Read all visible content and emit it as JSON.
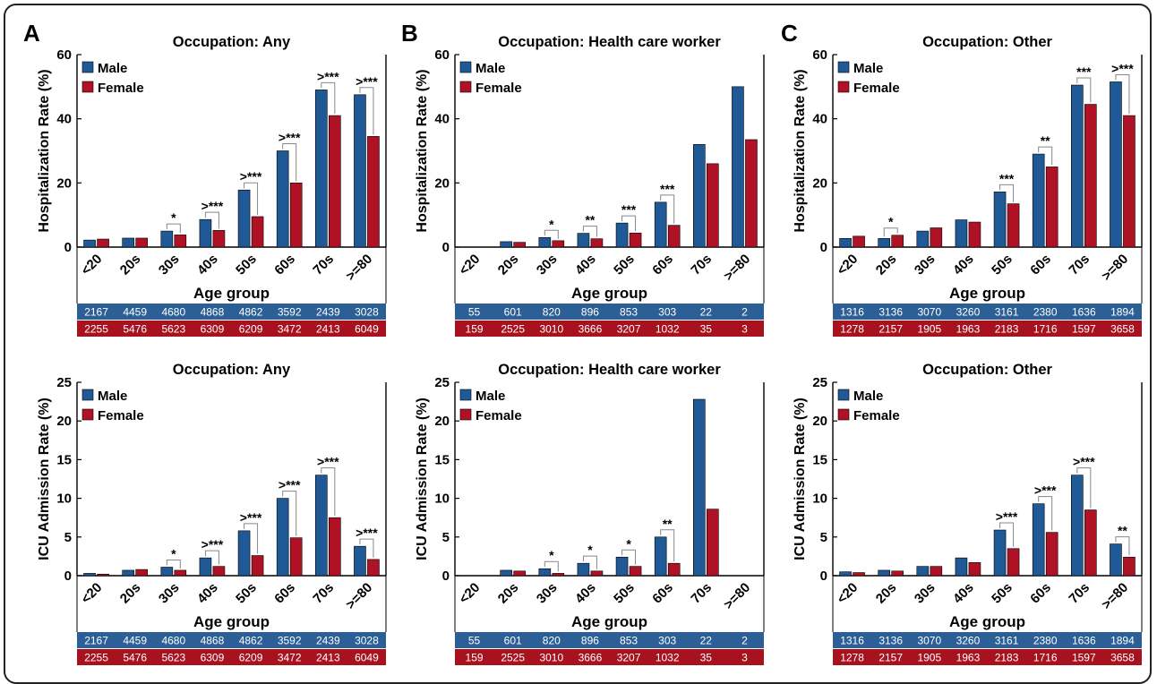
{
  "colors": {
    "male": "#1f5996",
    "female": "#b01225",
    "male_row": "#2b5f95",
    "female_row": "#a8121f"
  },
  "panel_letters": [
    "A",
    "B",
    "C"
  ],
  "legend": {
    "male": "Male",
    "female": "Female"
  },
  "x_axis_label": "Age group",
  "chart_data": [
    {
      "type": "bar",
      "panel": "A",
      "title": "Occupation: Any",
      "ylabel": "Hospitalization Rate (%)",
      "xlabel": "Age group",
      "ylim": [
        0,
        60
      ],
      "yticks": [
        0,
        20,
        40,
        60
      ],
      "categories": [
        "<20",
        "20s",
        "30s",
        "40s",
        "50s",
        "60s",
        "70s",
        ">=80"
      ],
      "series": [
        {
          "name": "Male",
          "values": [
            2.2,
            2.8,
            5.0,
            8.6,
            17.8,
            30.0,
            49.0,
            47.5
          ]
        },
        {
          "name": "Female",
          "values": [
            2.5,
            2.8,
            3.8,
            5.2,
            9.5,
            20.0,
            41.0,
            34.5
          ]
        }
      ],
      "significance": [
        "",
        "",
        "*",
        ">***",
        ">***",
        ">***",
        ">***",
        ">***"
      ],
      "counts": {
        "male": [
          "2167",
          "4459",
          "4680",
          "4868",
          "4862",
          "3592",
          "2439",
          "3028"
        ],
        "female": [
          "2255",
          "5476",
          "5623",
          "6309",
          "6209",
          "3472",
          "2413",
          "6049"
        ]
      }
    },
    {
      "type": "bar",
      "panel": "B",
      "title": "Occupation: Health care worker",
      "ylabel": "Hospitalization Rate (%)",
      "xlabel": "Age group",
      "ylim": [
        0,
        60
      ],
      "yticks": [
        0,
        20,
        40,
        60
      ],
      "categories": [
        "<20",
        "20s",
        "30s",
        "40s",
        "50s",
        "60s",
        "70s",
        ">=80"
      ],
      "series": [
        {
          "name": "Male",
          "values": [
            0,
            1.7,
            3.0,
            4.3,
            7.5,
            14.0,
            32.0,
            50.0
          ]
        },
        {
          "name": "Female",
          "values": [
            0,
            1.5,
            2.0,
            2.6,
            4.4,
            6.8,
            26.0,
            33.5
          ]
        }
      ],
      "significance": [
        "",
        "",
        "*",
        "**",
        "***",
        "***",
        "",
        ""
      ],
      "counts": {
        "male": [
          "55",
          "601",
          "820",
          "896",
          "853",
          "303",
          "22",
          "2"
        ],
        "female": [
          "159",
          "2525",
          "3010",
          "3666",
          "3207",
          "1032",
          "35",
          "3"
        ]
      }
    },
    {
      "type": "bar",
      "panel": "C",
      "title": "Occupation: Other",
      "ylabel": "Hospitalization Rate (%)",
      "xlabel": "Age group",
      "ylim": [
        0,
        60
      ],
      "yticks": [
        0,
        20,
        40,
        60
      ],
      "categories": [
        "<20",
        "20s",
        "30s",
        "40s",
        "50s",
        "60s",
        "70s",
        ">=80"
      ],
      "series": [
        {
          "name": "Male",
          "values": [
            2.7,
            2.7,
            5.0,
            8.5,
            17.2,
            29.0,
            50.5,
            51.5
          ]
        },
        {
          "name": "Female",
          "values": [
            3.4,
            3.7,
            6.0,
            7.8,
            13.5,
            25.0,
            44.5,
            41.0
          ]
        }
      ],
      "significance": [
        "",
        "*",
        "",
        "",
        "***",
        "**",
        "***",
        ">***"
      ],
      "counts": {
        "male": [
          "1316",
          "3136",
          "3070",
          "3260",
          "3161",
          "2380",
          "1636",
          "1894"
        ],
        "female": [
          "1278",
          "2157",
          "1905",
          "1963",
          "2183",
          "1716",
          "1597",
          "3658"
        ]
      }
    },
    {
      "type": "bar",
      "panel": "A",
      "title": "Occupation: Any",
      "ylabel": "ICU Admission Rate (%)",
      "xlabel": "Age group",
      "ylim": [
        0,
        25
      ],
      "yticks": [
        0,
        5,
        10,
        15,
        20,
        25
      ],
      "categories": [
        "<20",
        "20s",
        "30s",
        "40s",
        "50s",
        "60s",
        "70s",
        ">=80"
      ],
      "series": [
        {
          "name": "Male",
          "values": [
            0.3,
            0.7,
            1.1,
            2.3,
            5.8,
            10.0,
            13.0,
            3.8
          ]
        },
        {
          "name": "Female",
          "values": [
            0.2,
            0.8,
            0.7,
            1.2,
            2.6,
            4.9,
            7.5,
            2.1
          ]
        }
      ],
      "significance": [
        "",
        "",
        "*",
        ">***",
        ">***",
        ">***",
        ">***",
        ">***"
      ],
      "counts": {
        "male": [
          "2167",
          "4459",
          "4680",
          "4868",
          "4862",
          "3592",
          "2439",
          "3028"
        ],
        "female": [
          "2255",
          "5476",
          "5623",
          "6309",
          "6209",
          "3472",
          "2413",
          "6049"
        ]
      }
    },
    {
      "type": "bar",
      "panel": "B",
      "title": "Occupation: Health care worker",
      "ylabel": "ICU Admission Rate (%)",
      "xlabel": "Age group",
      "ylim": [
        0,
        25
      ],
      "yticks": [
        0,
        5,
        10,
        15,
        20,
        25
      ],
      "categories": [
        "<20",
        "20s",
        "30s",
        "40s",
        "50s",
        "60s",
        "70s",
        ">=80"
      ],
      "series": [
        {
          "name": "Male",
          "values": [
            0,
            0.7,
            0.9,
            1.6,
            2.4,
            5.0,
            22.8,
            0
          ]
        },
        {
          "name": "Female",
          "values": [
            0,
            0.6,
            0.3,
            0.6,
            1.2,
            1.6,
            8.6,
            0
          ]
        }
      ],
      "significance": [
        "",
        "",
        "*",
        "*",
        "*",
        "**",
        "",
        ""
      ],
      "counts": {
        "male": [
          "55",
          "601",
          "820",
          "896",
          "853",
          "303",
          "22",
          "2"
        ],
        "female": [
          "159",
          "2525",
          "3010",
          "3666",
          "3207",
          "1032",
          "35",
          "3"
        ]
      }
    },
    {
      "type": "bar",
      "panel": "C",
      "title": "Occupation: Other",
      "ylabel": "ICU Admission Rate (%)",
      "xlabel": "Age group",
      "ylim": [
        0,
        25
      ],
      "yticks": [
        0,
        5,
        10,
        15,
        20,
        25
      ],
      "categories": [
        "<20",
        "20s",
        "30s",
        "40s",
        "50s",
        "60s",
        "70s",
        ">=80"
      ],
      "series": [
        {
          "name": "Male",
          "values": [
            0.5,
            0.7,
            1.2,
            2.3,
            5.9,
            9.3,
            13.0,
            4.1
          ]
        },
        {
          "name": "Female",
          "values": [
            0.4,
            0.6,
            1.2,
            1.7,
            3.5,
            5.6,
            8.5,
            2.4
          ]
        }
      ],
      "significance": [
        "",
        "",
        "",
        "",
        ">***",
        ">***",
        ">***",
        "**"
      ],
      "counts": {
        "male": [
          "1316",
          "3136",
          "3070",
          "3260",
          "3161",
          "2380",
          "1636",
          "1894"
        ],
        "female": [
          "1278",
          "2157",
          "1905",
          "1963",
          "2183",
          "1716",
          "1597",
          "3658"
        ]
      }
    }
  ]
}
